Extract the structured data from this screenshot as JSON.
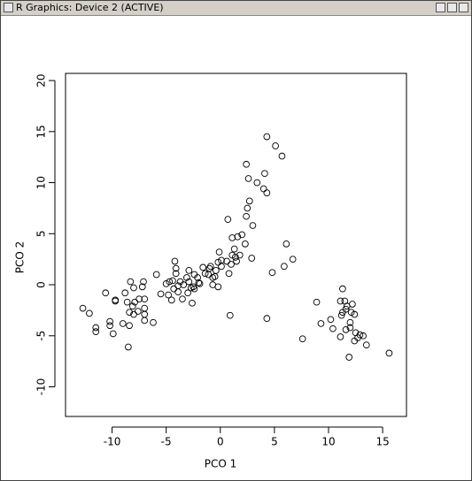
{
  "window": {
    "title": "R Graphics: Device 2 (ACTIVE)"
  },
  "chart_data": {
    "type": "scatter",
    "xlabel": "PCO 1",
    "ylabel": "PCO 2",
    "color": "#000000",
    "x": [
      -12.7,
      -12.1,
      -11.5,
      -11.5,
      -10.6,
      -10.2,
      -10.2,
      -9.9,
      -9.7,
      -9.7,
      -9.0,
      -8.8,
      -8.6,
      -8.5,
      -8.4,
      -8.4,
      -8.3,
      -8.1,
      -8.0,
      -8.0,
      -7.9,
      -7.6,
      -7.5,
      -7.2,
      -7.1,
      -7.0,
      -7.0,
      -7.0,
      -7.0,
      -6.2,
      -5.9,
      -5.5,
      -5.0,
      -4.8,
      -4.7,
      -4.5,
      -4.4,
      -4.3,
      -4.2,
      -4.1,
      -4.1,
      -3.9,
      -3.9,
      -3.7,
      -3.5,
      -3.4,
      -3.1,
      -3.0,
      -2.9,
      -2.9,
      -2.7,
      -2.6,
      -2.5,
      -2.4,
      -2.4,
      -2.1,
      -2.0,
      -1.9,
      -1.6,
      -1.4,
      -1.1,
      -1.0,
      -0.9,
      -0.7,
      -0.7,
      -0.5,
      -0.4,
      -0.2,
      -0.2,
      -0.1,
      0.1,
      0.1,
      0.6,
      0.7,
      0.8,
      0.9,
      1.0,
      1.1,
      1.1,
      1.3,
      1.4,
      1.5,
      1.6,
      1.8,
      2.0,
      2.3,
      2.4,
      2.4,
      2.5,
      2.6,
      2.7,
      2.9,
      3.0,
      3.4,
      4.0,
      4.1,
      4.3,
      4.3,
      4.3,
      4.8,
      5.1,
      5.7,
      5.9,
      6.1,
      6.7,
      7.6,
      8.9,
      9.3,
      10.2,
      10.4,
      11.1,
      11.1,
      11.2,
      11.3,
      11.3,
      11.5,
      11.6,
      11.6,
      11.7,
      11.9,
      12.0,
      12.0,
      12.1,
      12.2,
      12.4,
      12.4,
      12.5,
      12.7,
      12.9,
      13.2,
      13.5,
      15.6
    ],
    "values": [
      -2.3,
      -2.8,
      -4.2,
      -4.6,
      -0.8,
      -3.6,
      -4.0,
      -4.8,
      -1.5,
      -1.6,
      -3.8,
      -0.8,
      -1.7,
      -6.1,
      -4.0,
      -2.7,
      0.3,
      -2.1,
      -0.3,
      -2.9,
      -1.7,
      -2.6,
      -1.4,
      -0.2,
      0.3,
      -1.4,
      -2.9,
      -2.3,
      -3.5,
      -3.7,
      1.0,
      -0.9,
      0.1,
      -1.0,
      0.3,
      -1.5,
      0.4,
      -0.4,
      2.3,
      1.6,
      1.1,
      -0.1,
      -0.7,
      0.3,
      -1.4,
      0.0,
      0.7,
      -0.8,
      0.3,
      1.4,
      -0.3,
      -1.8,
      -0.2,
      1.0,
      -0.4,
      0.7,
      0.2,
      0.1,
      1.7,
      1.1,
      1.0,
      1.6,
      1.8,
      0.0,
      0.7,
      0.8,
      1.4,
      -0.2,
      2.2,
      3.2,
      2.4,
      1.8,
      2.3,
      6.4,
      1.1,
      -3.0,
      2.0,
      2.9,
      4.6,
      3.5,
      2.7,
      2.3,
      4.7,
      2.9,
      4.9,
      4.0,
      11.8,
      6.7,
      7.5,
      10.4,
      8.2,
      2.6,
      5.8,
      10.0,
      9.4,
      10.9,
      9.0,
      -3.3,
      14.5,
      1.2,
      13.6,
      12.6,
      1.8,
      4.0,
      2.5,
      -5.3,
      -1.7,
      -3.8,
      -3.4,
      -4.3,
      -1.6,
      -5.1,
      -3.0,
      -2.7,
      -0.4,
      -1.6,
      -2.4,
      -4.4,
      -2.1,
      -7.1,
      -3.7,
      -4.2,
      -2.7,
      -1.9,
      -2.9,
      -5.5,
      -4.7,
      -5.2,
      -4.9,
      -5.0,
      -5.9,
      -6.7
    ],
    "xlim": [
      -14.3,
      17.2
    ],
    "ylim": [
      -12.9,
      20.7
    ],
    "xticks": [
      -10,
      -5,
      0,
      5,
      10,
      15
    ],
    "yticks": [
      -10,
      -5,
      0,
      5,
      10,
      15,
      20
    ]
  }
}
